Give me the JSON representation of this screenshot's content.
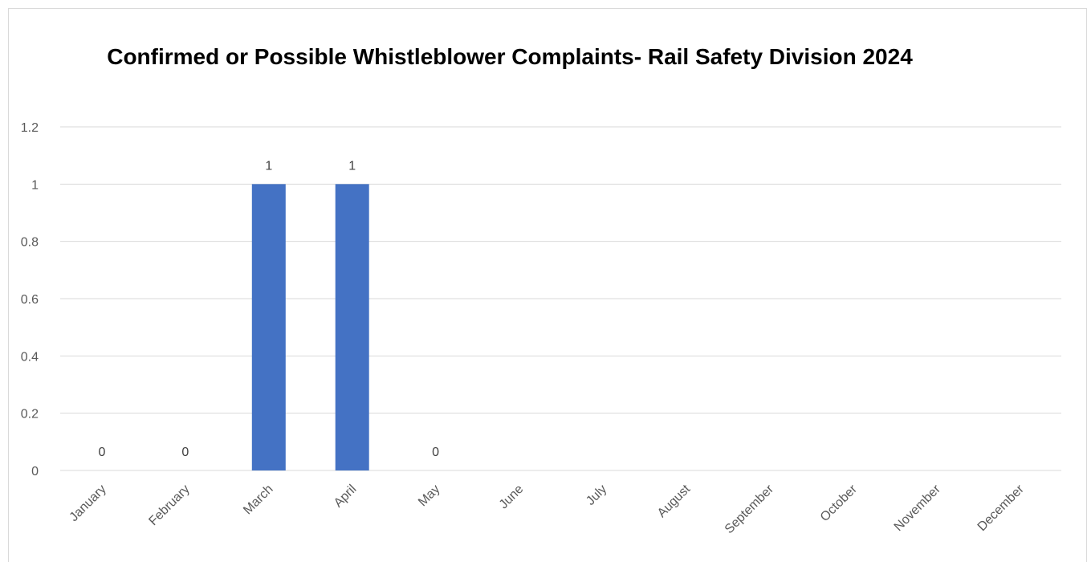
{
  "chart_data": {
    "type": "bar",
    "title": "Confirmed or Possible Whistleblower Complaints- Rail Safety Division 2024",
    "xlabel": "",
    "ylabel": "",
    "categories": [
      "January",
      "February",
      "March",
      "April",
      "May",
      "June",
      "July",
      "August",
      "September",
      "October",
      "November",
      "December"
    ],
    "values": [
      0,
      0,
      1,
      1,
      0,
      null,
      null,
      null,
      null,
      null,
      null,
      null
    ],
    "data_labels": [
      "0",
      "0",
      "1",
      "1",
      "0",
      "",
      "",
      "",
      "",
      "",
      "",
      ""
    ],
    "ylim": [
      0,
      1.2
    ],
    "yticks": [
      "0",
      "0.2",
      "0.4",
      "0.6",
      "0.8",
      "1",
      "1.2"
    ],
    "bar_color": "#4472C4",
    "grid": true,
    "legend": "none"
  }
}
